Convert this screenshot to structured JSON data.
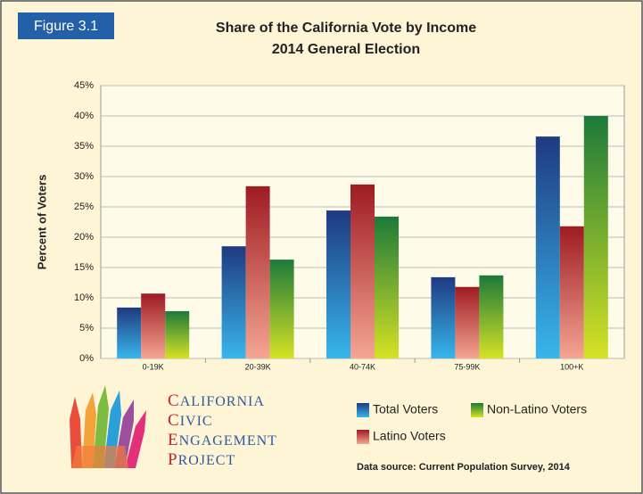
{
  "figure_label": "Figure 3.1",
  "logo": [
    "CALIFORNIA",
    "CIVIC",
    "ENGAGEMENT",
    "PROJECT"
  ],
  "source": "Data source: Current Population Survey, 2014",
  "chart_data": {
    "type": "bar",
    "title": [
      "Share of the California Vote by Income",
      "2014 General Election"
    ],
    "y_label": "Percent of Voters",
    "categories": [
      "0-19K",
      "20-39K",
      "40-74K",
      "75-99K",
      "100+K"
    ],
    "series": [
      {
        "name": "Total Voters",
        "color": "#1f3a80",
        "values": [
          8.4,
          18.5,
          24.4,
          13.4,
          36.6
        ]
      },
      {
        "name": "Latino Voters",
        "color": "#9e1b22",
        "values": [
          10.7,
          28.4,
          28.7,
          11.8,
          21.8
        ]
      },
      {
        "name": "Non-Latino Voters",
        "color": "#1c7a3a",
        "values": [
          7.8,
          16.3,
          23.4,
          13.7,
          40.0
        ]
      }
    ],
    "ylim": [
      0,
      45
    ],
    "yticks": [
      {
        "value": 0,
        "label": "0%"
      },
      {
        "value": 5,
        "label": "5%"
      },
      {
        "value": 10,
        "label": "10%"
      },
      {
        "value": 15,
        "label": "15%"
      },
      {
        "value": 20,
        "label": "20%"
      },
      {
        "value": 25,
        "label": "25%"
      },
      {
        "value": 30,
        "label": "30%"
      },
      {
        "value": 35,
        "label": "35%"
      },
      {
        "value": 40,
        "label": "40%"
      },
      {
        "value": 45,
        "label": "45%"
      }
    ],
    "grid": true
  }
}
